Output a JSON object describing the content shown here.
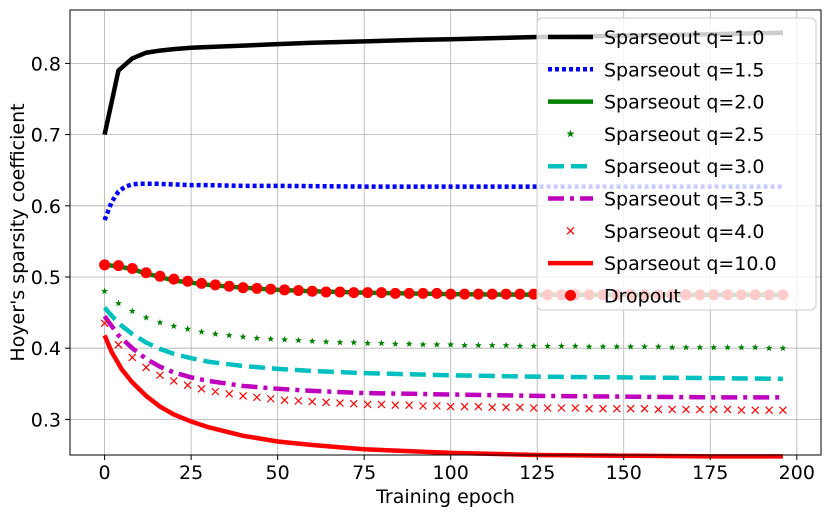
{
  "chart_data": {
    "type": "line",
    "title": "",
    "xlabel": "Training epoch",
    "ylabel": "Hoyer's sparsity coefficient",
    "xlim": [
      -10,
      207
    ],
    "ylim": [
      0.25,
      0.875
    ],
    "xticks": [
      0,
      25,
      50,
      75,
      100,
      125,
      150,
      175,
      200
    ],
    "xtick_labels": [
      "0",
      "25",
      "50",
      "75",
      "100",
      "125",
      "150",
      "175",
      "200"
    ],
    "yticks": [
      0.3,
      0.4,
      0.5,
      0.6,
      0.7,
      0.8
    ],
    "ytick_labels": [
      "0.3",
      "0.4",
      "0.5",
      "0.6",
      "0.7",
      "0.8"
    ],
    "grid": true,
    "legend_position": "top-right",
    "series": [
      {
        "name": "Sparseout q=1.0",
        "style": "solid",
        "color": "#000000",
        "x": [
          0,
          4,
          8,
          12,
          16,
          20,
          25,
          30,
          40,
          50,
          60,
          75,
          90,
          100,
          125,
          150,
          175,
          196
        ],
        "y": [
          0.7,
          0.79,
          0.807,
          0.815,
          0.818,
          0.82,
          0.822,
          0.823,
          0.825,
          0.827,
          0.829,
          0.831,
          0.833,
          0.834,
          0.837,
          0.839,
          0.841,
          0.843
        ]
      },
      {
        "name": "Sparseout q=1.5",
        "style": "dotted",
        "color": "#0000ff",
        "x": [
          0,
          2,
          4,
          6,
          8,
          10,
          12,
          15,
          20,
          25,
          30,
          40,
          50,
          75,
          100,
          125,
          150,
          175,
          196
        ],
        "y": [
          0.58,
          0.605,
          0.62,
          0.627,
          0.63,
          0.631,
          0.631,
          0.631,
          0.63,
          0.629,
          0.629,
          0.628,
          0.628,
          0.627,
          0.627,
          0.627,
          0.627,
          0.627,
          0.627
        ]
      },
      {
        "name": "Sparseout q=2.0",
        "style": "solid",
        "color": "#008000",
        "x": [
          0,
          4,
          8,
          12,
          16,
          20,
          25,
          30,
          40,
          50,
          60,
          75,
          100,
          125,
          150,
          175,
          196
        ],
        "y": [
          0.517,
          0.515,
          0.511,
          0.505,
          0.5,
          0.495,
          0.492,
          0.489,
          0.485,
          0.482,
          0.48,
          0.478,
          0.476,
          0.475,
          0.475,
          0.475,
          0.475
        ]
      },
      {
        "name": "Sparseout q=2.5",
        "style": "star",
        "color": "#008000",
        "x": [
          0,
          4,
          8,
          12,
          16,
          20,
          24,
          28,
          32,
          36,
          40,
          44,
          48,
          52,
          56,
          60,
          64,
          68,
          72,
          76,
          80,
          84,
          88,
          92,
          96,
          100,
          104,
          108,
          112,
          116,
          120,
          124,
          128,
          132,
          136,
          140,
          144,
          148,
          152,
          156,
          160,
          164,
          168,
          172,
          176,
          180,
          184,
          188,
          192,
          196
        ],
        "y": [
          0.48,
          0.463,
          0.452,
          0.443,
          0.436,
          0.431,
          0.427,
          0.423,
          0.42,
          0.418,
          0.416,
          0.414,
          0.413,
          0.412,
          0.411,
          0.41,
          0.409,
          0.408,
          0.408,
          0.407,
          0.407,
          0.406,
          0.406,
          0.405,
          0.405,
          0.405,
          0.404,
          0.404,
          0.404,
          0.404,
          0.403,
          0.403,
          0.403,
          0.403,
          0.403,
          0.402,
          0.402,
          0.402,
          0.402,
          0.402,
          0.402,
          0.401,
          0.401,
          0.401,
          0.401,
          0.401,
          0.401,
          0.401,
          0.4,
          0.4
        ]
      },
      {
        "name": "Sparseout q=3.0",
        "style": "dashed",
        "color": "#00bfbf",
        "x": [
          0,
          4,
          8,
          12,
          16,
          20,
          25,
          30,
          40,
          50,
          60,
          75,
          100,
          125,
          150,
          175,
          196
        ],
        "y": [
          0.457,
          0.435,
          0.42,
          0.408,
          0.399,
          0.392,
          0.386,
          0.381,
          0.375,
          0.371,
          0.368,
          0.365,
          0.362,
          0.36,
          0.359,
          0.358,
          0.357
        ]
      },
      {
        "name": "Sparseout q=3.5",
        "style": "dashdot",
        "color": "#bf00bf",
        "x": [
          0,
          4,
          8,
          12,
          16,
          20,
          25,
          30,
          40,
          50,
          60,
          75,
          100,
          125,
          150,
          175,
          196
        ],
        "y": [
          0.445,
          0.418,
          0.4,
          0.385,
          0.374,
          0.366,
          0.359,
          0.354,
          0.347,
          0.343,
          0.34,
          0.337,
          0.335,
          0.333,
          0.332,
          0.331,
          0.331
        ]
      },
      {
        "name": "Sparseout q=4.0",
        "style": "x",
        "color": "#ff0000",
        "x": [
          0,
          4,
          8,
          12,
          16,
          20,
          24,
          28,
          32,
          36,
          40,
          44,
          48,
          52,
          56,
          60,
          64,
          68,
          72,
          76,
          80,
          84,
          88,
          92,
          96,
          100,
          104,
          108,
          112,
          116,
          120,
          124,
          128,
          132,
          136,
          140,
          144,
          148,
          152,
          156,
          160,
          164,
          168,
          172,
          176,
          180,
          184,
          188,
          192,
          196
        ],
        "y": [
          0.435,
          0.405,
          0.387,
          0.373,
          0.362,
          0.354,
          0.348,
          0.343,
          0.339,
          0.336,
          0.333,
          0.331,
          0.329,
          0.327,
          0.326,
          0.325,
          0.324,
          0.323,
          0.322,
          0.321,
          0.321,
          0.32,
          0.32,
          0.319,
          0.319,
          0.318,
          0.318,
          0.318,
          0.317,
          0.317,
          0.317,
          0.316,
          0.316,
          0.316,
          0.316,
          0.315,
          0.315,
          0.315,
          0.315,
          0.315,
          0.314,
          0.314,
          0.314,
          0.314,
          0.314,
          0.314,
          0.313,
          0.313,
          0.313,
          0.313
        ]
      },
      {
        "name": "Sparseout q=10.0",
        "style": "solid",
        "color": "#ff0000",
        "x": [
          0,
          2,
          5,
          8,
          12,
          16,
          20,
          25,
          30,
          40,
          50,
          60,
          75,
          100,
          125,
          150,
          175,
          196
        ],
        "y": [
          0.418,
          0.395,
          0.37,
          0.352,
          0.333,
          0.318,
          0.307,
          0.297,
          0.289,
          0.277,
          0.269,
          0.264,
          0.258,
          0.253,
          0.25,
          0.249,
          0.248,
          0.248
        ]
      },
      {
        "name": "Dropout",
        "style": "circle",
        "color": "#ff0000",
        "x": [
          0,
          4,
          8,
          12,
          16,
          20,
          24,
          28,
          32,
          36,
          40,
          44,
          48,
          52,
          56,
          60,
          64,
          68,
          72,
          76,
          80,
          84,
          88,
          92,
          96,
          100,
          104,
          108,
          112,
          116,
          120,
          124,
          128,
          132,
          136,
          140,
          144,
          148,
          152,
          156,
          160,
          164,
          168,
          172,
          176,
          180,
          184,
          188,
          192,
          196
        ],
        "y": [
          0.517,
          0.516,
          0.512,
          0.506,
          0.501,
          0.497,
          0.494,
          0.491,
          0.489,
          0.487,
          0.485,
          0.484,
          0.483,
          0.482,
          0.481,
          0.48,
          0.479,
          0.479,
          0.478,
          0.478,
          0.478,
          0.477,
          0.477,
          0.477,
          0.477,
          0.476,
          0.476,
          0.476,
          0.476,
          0.476,
          0.476,
          0.476,
          0.475,
          0.475,
          0.475,
          0.475,
          0.475,
          0.475,
          0.475,
          0.475,
          0.475,
          0.475,
          0.475,
          0.475,
          0.475,
          0.475,
          0.475,
          0.475,
          0.475,
          0.475
        ]
      }
    ]
  }
}
